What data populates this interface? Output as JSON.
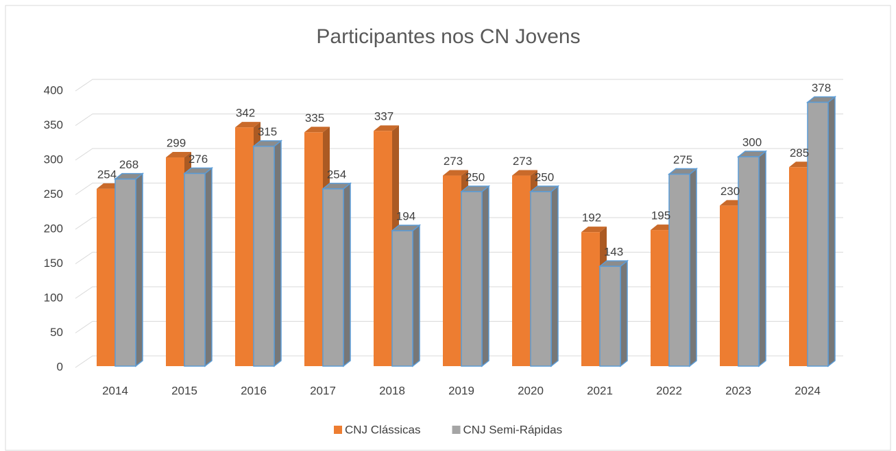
{
  "chart_data": {
    "type": "bar3d",
    "title": "Participantes nos CN Jovens",
    "categories": [
      "2014",
      "2015",
      "2016",
      "2017",
      "2018",
      "2019",
      "2020",
      "2021",
      "2022",
      "2023",
      "2024"
    ],
    "series": [
      {
        "name": "CNJ Clássicas",
        "color": "#ed7d31",
        "values": [
          254,
          299,
          342,
          335,
          337,
          273,
          273,
          192,
          195,
          230,
          285
        ]
      },
      {
        "name": "CNJ Semi-Rápidas",
        "color": "#a5a5a5",
        "values": [
          268,
          276,
          315,
          254,
          194,
          250,
          250,
          143,
          275,
          300,
          378
        ]
      }
    ],
    "ylim": [
      0,
      400
    ],
    "yticks": [
      0,
      50,
      100,
      150,
      200,
      250,
      300,
      350,
      400
    ],
    "grid": true,
    "legend": "bottom"
  }
}
